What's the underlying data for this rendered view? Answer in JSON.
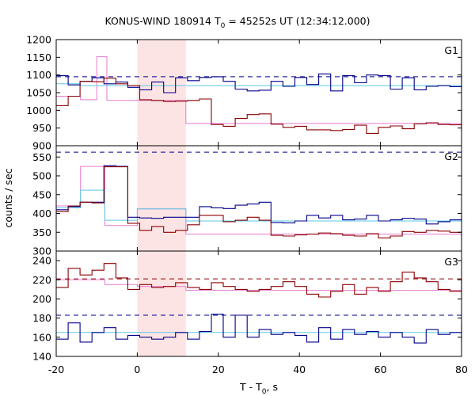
{
  "chart_data": {
    "type": "line",
    "title": "KONUS-WIND 180914 T₀ = 45252s UT (12:34:12.000)",
    "title_parts": {
      "pre": "KONUS-WIND 180914 T",
      "sub": "0",
      "post": " = 45252s UT (12:34:12.000)"
    },
    "xlabel": "T - T₀, s",
    "xlabel_parts": {
      "pre": "T - T",
      "sub": "0",
      "post": ", s"
    },
    "ylabel": "counts / sec",
    "xlim": [
      -20,
      80
    ],
    "x_ticks": [
      -20,
      0,
      20,
      40,
      60,
      80
    ],
    "shaded_interval": [
      0,
      12
    ],
    "colors": {
      "background_series": "#00008b",
      "source_series": "#8b0000",
      "source_fit": "#e87ad0",
      "background_fit": "#5bc8e8",
      "shade": "#fde4e4"
    },
    "panels": [
      {
        "name": "G1",
        "ylim": [
          900,
          1200
        ],
        "y_ticks": [
          900,
          950,
          1000,
          1050,
          1100,
          1150,
          1200
        ],
        "dashed_levels": [
          {
            "y": 1095,
            "color": "#00008b"
          }
        ],
        "step_width": 2.944,
        "series": [
          {
            "start": -20,
            "color": "#00008b",
            "values": [
              1098,
              1072,
              1082,
              1092,
              1075,
              1080,
              1065,
              1058,
              1080,
              1050,
              1092,
              1084,
              1093,
              1095,
              1082,
              1060,
              1055,
              1057,
              1082,
              1068,
              1093,
              1073,
              1103,
              1055,
              1098,
              1078,
              1100,
              1098,
              1060,
              1092,
              1058,
              1068,
              1070,
              1067,
              1097,
              1061,
              1077,
              1062,
              1100,
              1071,
              1090,
              1067,
              1100,
              1086,
              1061,
              1060,
              1081,
              1100,
              1058,
              1078,
              1078,
              1088,
              1079,
              1074,
              1060,
              1075
            ]
          },
          {
            "start": -20,
            "color": "#8b0000",
            "values": [
              1013,
              1040,
              1082,
              1081,
              1091,
              1075,
              1070,
              1030,
              1028,
              1025,
              1026,
              1028,
              1032,
              960,
              955,
              977,
              988,
              990,
              961,
              952,
              955,
              945,
              945,
              943,
              946,
              958,
              935,
              952,
              956,
              948,
              962,
              965,
              960,
              959,
              955,
              968,
              968,
              985,
              988,
              980,
              972,
              958,
              949,
              951,
              957,
              942,
              965,
              960,
              971,
              979,
              980,
              990,
              997,
              985,
              968,
              951
            ]
          }
        ],
        "fits": [
          {
            "color": "#e87ad0",
            "points": [
              [
                -20,
                1040
              ],
              [
                -14,
                1040
              ],
              [
                -14,
                1030
              ],
              [
                -10,
                1030
              ],
              [
                -10,
                1152
              ],
              [
                -7.5,
                1152
              ],
              [
                -7.5,
                1028
              ],
              [
                12,
                1028
              ],
              [
                12,
                963
              ],
              [
                80,
                963
              ]
            ]
          },
          {
            "color": "#5bc8e8",
            "points": [
              [
                -20,
                1075
              ],
              [
                -14,
                1075
              ],
              [
                -14,
                1070
              ],
              [
                80,
                1070
              ]
            ]
          }
        ]
      },
      {
        "name": "G2",
        "ylim": [
          300,
          580
        ],
        "y_ticks": [
          300,
          350,
          400,
          450,
          500,
          550
        ],
        "dashed_levels": [
          {
            "y": 563,
            "color": "#00008b"
          }
        ],
        "step_width": 2.944,
        "series": [
          {
            "start": -20,
            "color": "#00008b",
            "values": [
              410,
              418,
              430,
              430,
              527,
              525,
              390,
              388,
              387,
              390,
              390,
              390,
              418,
              415,
              413,
              422,
              425,
              430,
              376,
              375,
              380,
              395,
              388,
              395,
              383,
              385,
              395,
              380,
              383,
              387,
              385,
              372,
              378,
              383,
              380,
              378,
              390,
              380,
              380,
              394,
              380,
              380,
              386,
              397,
              376,
              384,
              380,
              382,
              390,
              384,
              381,
              380,
              386,
              396,
              380,
              379
            ]
          },
          {
            "start": -20,
            "color": "#8b0000",
            "values": [
              405,
              420,
              430,
              428,
              524,
              524,
              374,
              355,
              365,
              350,
              355,
              370,
              395,
              395,
              378,
              382,
              390,
              382,
              342,
              340,
              343,
              345,
              348,
              346,
              342,
              340,
              346,
              335,
              340,
              352,
              350,
              355,
              353,
              350,
              349,
              355,
              346,
              345,
              350,
              345,
              344,
              340,
              337,
              345,
              339,
              348,
              338,
              335,
              338,
              340,
              330,
              342,
              348,
              340,
              343,
              352
            ]
          }
        ],
        "fits": [
          {
            "color": "#e87ad0",
            "points": [
              [
                -20,
                420
              ],
              [
                -14,
                420
              ],
              [
                -14,
                525
              ],
              [
                -8,
                525
              ],
              [
                -8,
                368
              ],
              [
                0,
                368
              ],
              [
                0,
                412
              ],
              [
                12,
                412
              ],
              [
                12,
                345
              ],
              [
                80,
                345
              ]
            ]
          },
          {
            "color": "#5bc8e8",
            "points": [
              [
                -20,
                415
              ],
              [
                -14,
                415
              ],
              [
                -14,
                462
              ],
              [
                -8,
                462
              ],
              [
                -8,
                382
              ],
              [
                0,
                382
              ],
              [
                0,
                412
              ],
              [
                12,
                412
              ],
              [
                12,
                380
              ],
              [
                80,
                380
              ]
            ]
          }
        ]
      },
      {
        "name": "G3",
        "ylim": [
          140,
          250
        ],
        "y_ticks": [
          140,
          160,
          180,
          200,
          220,
          240
        ],
        "dashed_levels": [
          {
            "y": 221,
            "color": "#8b0000"
          },
          {
            "y": 183,
            "color": "#00008b"
          }
        ],
        "step_width": 2.944,
        "series": [
          {
            "start": -20,
            "color": "#8b0000",
            "values": [
              212,
              232,
              225,
              230,
              237,
              222,
              210,
              215,
              212,
              213,
              217,
              212,
              210,
              217,
              213,
              210,
              208,
              210,
              213,
              218,
              213,
              205,
              202,
              208,
              215,
              205,
              212,
              208,
              218,
              228,
              222,
              218,
              210,
              208,
              212,
              218,
              222,
              218,
              212,
              210,
              208,
              218,
              212,
              210,
              222,
              213,
              218,
              205,
              208,
              212,
              208,
              205,
              208,
              202,
              210,
              220
            ]
          },
          {
            "start": -20,
            "color": "#00008b",
            "values": [
              158,
              175,
              155,
              165,
              170,
              158,
              162,
              160,
              158,
              160,
              165,
              158,
              166,
              184,
              160,
              183,
              160,
              168,
              163,
              165,
              162,
              155,
              170,
              158,
              168,
              163,
              166,
              160,
              165,
              160,
              154,
              168,
              163,
              165,
              170,
              170,
              158,
              164,
              160,
              173,
              160,
              155,
              158,
              165,
              155,
              166,
              172,
              158,
              170,
              163,
              165,
              160,
              168,
              172,
              164,
              158
            ]
          }
        ],
        "fits": [
          {
            "color": "#e87ad0",
            "points": [
              [
                -20,
                220
              ],
              [
                -8,
                220
              ],
              [
                -8,
                215
              ],
              [
                0,
                215
              ],
              [
                0,
                213
              ],
              [
                12,
                213
              ],
              [
                12,
                209
              ],
              [
                80,
                209
              ]
            ]
          },
          {
            "color": "#5bc8e8",
            "points": [
              [
                -20,
                165
              ],
              [
                80,
                165
              ]
            ]
          }
        ]
      }
    ]
  }
}
